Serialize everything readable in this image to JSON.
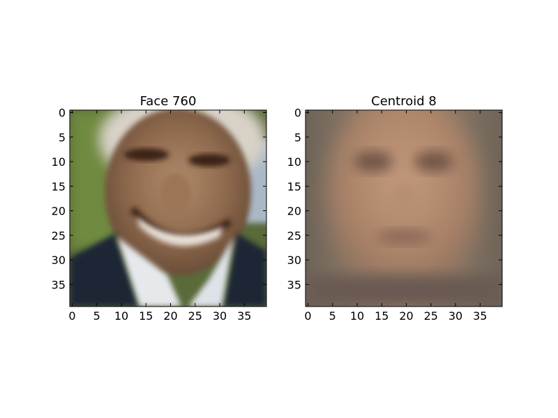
{
  "chart_data": [
    {
      "type": "image",
      "title": "Face 760",
      "image_size": [
        40,
        40
      ],
      "x_ticks": [
        0,
        5,
        10,
        15,
        20,
        25,
        30,
        35
      ],
      "y_ticks": [
        0,
        5,
        10,
        15,
        20,
        25,
        30,
        35
      ],
      "xlim": [
        -0.5,
        39.5
      ],
      "ylim": [
        39.5,
        -0.5
      ],
      "image": {
        "depicts": "photo of an elderly smiling man with white hair, dark suit and white shirt"
      }
    },
    {
      "type": "image",
      "title": "Centroid 8",
      "image_size": [
        40,
        40
      ],
      "x_ticks": [
        0,
        5,
        10,
        15,
        20,
        25,
        30,
        35
      ],
      "y_ticks": [
        0,
        5,
        10,
        15,
        20,
        25,
        30,
        35
      ],
      "xlim": [
        -0.5,
        39.5
      ],
      "ylim": [
        39.5,
        -0.5
      ],
      "image": {
        "depicts": "blurry average face"
      }
    }
  ]
}
